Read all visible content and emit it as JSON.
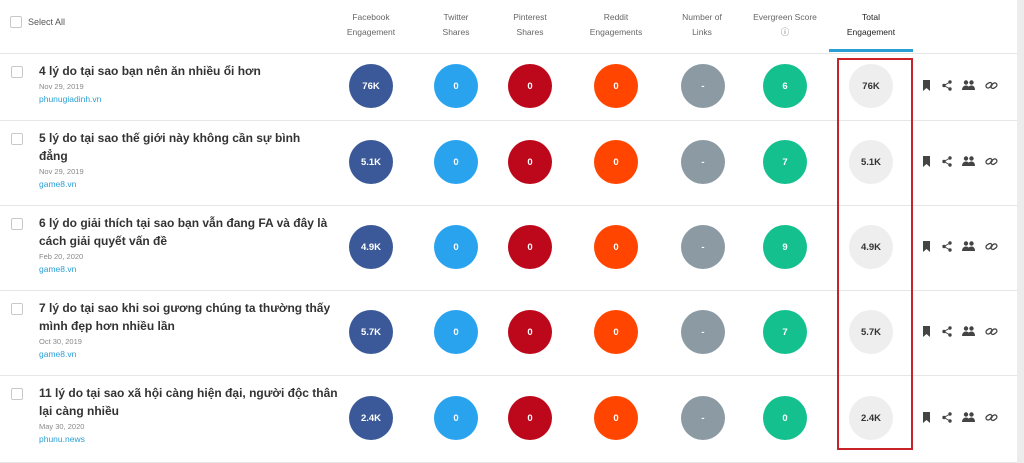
{
  "header": {
    "select_all": "Select All",
    "columns": [
      {
        "key": "facebook",
        "label": "Facebook\nEngagement"
      },
      {
        "key": "twitter",
        "label": "Twitter\nShares"
      },
      {
        "key": "pinterest",
        "label": "Pinterest\nShares"
      },
      {
        "key": "reddit",
        "label": "Reddit\nEngagements"
      },
      {
        "key": "links",
        "label": "Number of\nLinks"
      },
      {
        "key": "evergreen",
        "label": "Evergreen Score\nⓘ"
      },
      {
        "key": "total",
        "label": "Total\nEngagement"
      }
    ]
  },
  "rows": [
    {
      "title": "4 lý do tại sao bạn nên ăn nhiều ổi hơn",
      "date": "Nov 29, 2019",
      "domain": "phunugiadinh.vn",
      "facebook": "76K",
      "twitter": "0",
      "pinterest": "0",
      "reddit": "0",
      "links": "-",
      "evergreen": "6",
      "total": "76K"
    },
    {
      "title": "5 lý do tại sao thế giới này không cần sự bình đẳng",
      "date": "Nov 29, 2019",
      "domain": "game8.vn",
      "facebook": "5.1K",
      "twitter": "0",
      "pinterest": "0",
      "reddit": "0",
      "links": "-",
      "evergreen": "7",
      "total": "5.1K"
    },
    {
      "title": "6 lý do giải thích tại sao bạn vẫn đang FA và đây là cách giải quyết vấn đề",
      "date": "Feb 20, 2020",
      "domain": "game8.vn",
      "facebook": "4.9K",
      "twitter": "0",
      "pinterest": "0",
      "reddit": "0",
      "links": "-",
      "evergreen": "9",
      "total": "4.9K"
    },
    {
      "title": "7 lý do tại sao khi soi gương chúng ta thường thấy mình đẹp hơn nhiều lần",
      "date": "Oct 30, 2019",
      "domain": "game8.vn",
      "facebook": "5.7K",
      "twitter": "0",
      "pinterest": "0",
      "reddit": "0",
      "links": "-",
      "evergreen": "7",
      "total": "5.7K"
    },
    {
      "title": "11 lý do tại sao xã hội càng hiện đại, người độc thân lại càng nhiều",
      "date": "May 30, 2020",
      "domain": "phunu.news",
      "facebook": "2.4K",
      "twitter": "0",
      "pinterest": "0",
      "reddit": "0",
      "links": "-",
      "evergreen": "0",
      "total": "2.4K"
    }
  ],
  "icons": {
    "bookmark": "bookmark-icon",
    "share": "share-icon",
    "users": "users-icon",
    "link": "link-icon"
  },
  "colors": {
    "facebook": "#3b5998",
    "twitter": "#2aa3ef",
    "pinterest": "#bd081c",
    "reddit": "#ff4500",
    "links": "#8c9aa4",
    "evergreen": "#13c08e",
    "total": "#eeeeee",
    "highlight_box": "#c9232a",
    "active_tab_underline": "#2a9fd6"
  }
}
